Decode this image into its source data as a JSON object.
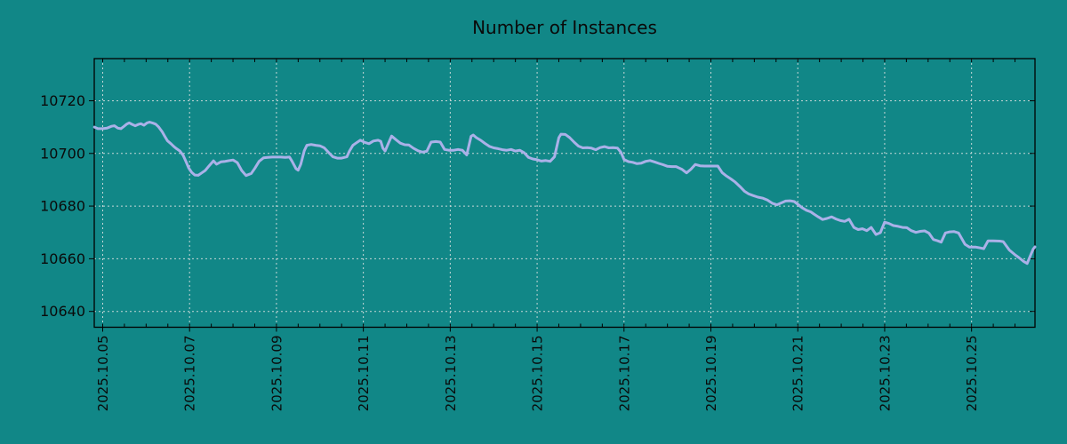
{
  "chart_data": {
    "type": "line",
    "title": "Number of Instances",
    "xlabel": "",
    "ylabel": "",
    "grid": true,
    "legend_position": "none",
    "background_color": "#118787",
    "line_color": "#aab1e8",
    "grid_color": "#c6d7d7",
    "axis_color": "#000000",
    "text_color": "#0a0a0a",
    "x_tick_labels": [
      "2025.10.05",
      "2025.10.07",
      "2025.10.09",
      "2025.10.11",
      "2025.10.13",
      "2025.10.15",
      "2025.10.17",
      "2025.10.19",
      "2025.10.21",
      "2025.10.23",
      "2025.10.25"
    ],
    "x_tick_days": [
      0,
      2,
      4,
      6,
      8,
      10,
      12,
      14,
      16,
      18,
      20
    ],
    "x_minor_step_days": 0.5,
    "y_ticks": [
      10640,
      10660,
      10680,
      10700,
      10720
    ],
    "ylim": [
      10634,
      10736
    ],
    "xlim_days": [
      -0.194,
      21.46
    ],
    "series": [
      {
        "name": "instances",
        "points": [
          [
            -0.19,
            10710
          ],
          [
            -0.11,
            10709.4
          ],
          [
            0,
            10709.4
          ],
          [
            0.1,
            10709.6
          ],
          [
            0.2,
            10710.3
          ],
          [
            0.27,
            10710.5
          ],
          [
            0.35,
            10709.6
          ],
          [
            0.42,
            10709.4
          ],
          [
            0.47,
            10710
          ],
          [
            0.55,
            10711.1
          ],
          [
            0.61,
            10711.6
          ],
          [
            0.68,
            10711
          ],
          [
            0.75,
            10710.5
          ],
          [
            0.82,
            10711
          ],
          [
            0.88,
            10711.3
          ],
          [
            0.95,
            10710.7
          ],
          [
            1.02,
            10711.6
          ],
          [
            1.08,
            10711.9
          ],
          [
            1.16,
            10711.5
          ],
          [
            1.22,
            10711.1
          ],
          [
            1.29,
            10710
          ],
          [
            1.37,
            10708.2
          ],
          [
            1.43,
            10706.5
          ],
          [
            1.49,
            10704.8
          ],
          [
            1.57,
            10703.7
          ],
          [
            1.64,
            10702.6
          ],
          [
            1.7,
            10701.8
          ],
          [
            1.78,
            10700.9
          ],
          [
            1.85,
            10699.3
          ],
          [
            1.92,
            10696.8
          ],
          [
            1.98,
            10694.5
          ],
          [
            2.05,
            10692.8
          ],
          [
            2.12,
            10691.8
          ],
          [
            2.2,
            10691.7
          ],
          [
            2.28,
            10692.6
          ],
          [
            2.36,
            10693.5
          ],
          [
            2.45,
            10695.3
          ],
          [
            2.55,
            10697.2
          ],
          [
            2.62,
            10695.9
          ],
          [
            2.72,
            10696.8
          ],
          [
            2.82,
            10697
          ],
          [
            2.92,
            10697.3
          ],
          [
            3,
            10697.5
          ],
          [
            3.1,
            10696.5
          ],
          [
            3.2,
            10693.5
          ],
          [
            3.3,
            10691.6
          ],
          [
            3.42,
            10692.4
          ],
          [
            3.5,
            10694.3
          ],
          [
            3.6,
            10697
          ],
          [
            3.7,
            10698.3
          ],
          [
            3.8,
            10698.5
          ],
          [
            3.9,
            10698.6
          ],
          [
            4,
            10698.6
          ],
          [
            4.1,
            10698.6
          ],
          [
            4.2,
            10698.5
          ],
          [
            4.3,
            10698.6
          ],
          [
            4.36,
            10697
          ],
          [
            4.45,
            10694.2
          ],
          [
            4.5,
            10693.6
          ],
          [
            4.56,
            10695.9
          ],
          [
            4.64,
            10701
          ],
          [
            4.7,
            10703.1
          ],
          [
            4.8,
            10703.4
          ],
          [
            4.9,
            10703.1
          ],
          [
            5,
            10702.9
          ],
          [
            5.1,
            10702.1
          ],
          [
            5.2,
            10700.4
          ],
          [
            5.3,
            10698.7
          ],
          [
            5.4,
            10698.2
          ],
          [
            5.5,
            10698.2
          ],
          [
            5.62,
            10698.7
          ],
          [
            5.68,
            10700.9
          ],
          [
            5.76,
            10703.1
          ],
          [
            5.83,
            10703.9
          ],
          [
            5.93,
            10705
          ],
          [
            6.03,
            10704.2
          ],
          [
            6.13,
            10703.7
          ],
          [
            6.23,
            10704.7
          ],
          [
            6.34,
            10705
          ],
          [
            6.4,
            10704.6
          ],
          [
            6.45,
            10702
          ],
          [
            6.5,
            10700.9
          ],
          [
            6.58,
            10704
          ],
          [
            6.65,
            10706.6
          ],
          [
            6.75,
            10705.2
          ],
          [
            6.85,
            10703.9
          ],
          [
            6.95,
            10703.3
          ],
          [
            7.05,
            10703.2
          ],
          [
            7.15,
            10702
          ],
          [
            7.26,
            10701
          ],
          [
            7.36,
            10700.5
          ],
          [
            7.46,
            10700.8
          ],
          [
            7.56,
            10704.3
          ],
          [
            7.67,
            10704.5
          ],
          [
            7.77,
            10704.3
          ],
          [
            7.87,
            10701.5
          ],
          [
            7.97,
            10701.2
          ],
          [
            8.08,
            10701.2
          ],
          [
            8.18,
            10701.5
          ],
          [
            8.28,
            10701.2
          ],
          [
            8.38,
            10699.4
          ],
          [
            8.48,
            10706.5
          ],
          [
            8.53,
            10707
          ],
          [
            8.6,
            10706
          ],
          [
            8.7,
            10705
          ],
          [
            8.8,
            10703.8
          ],
          [
            8.9,
            10702.7
          ],
          [
            9,
            10702.1
          ],
          [
            9.1,
            10701.8
          ],
          [
            9.2,
            10701.4
          ],
          [
            9.3,
            10701.2
          ],
          [
            9.4,
            10701.5
          ],
          [
            9.5,
            10700.9
          ],
          [
            9.6,
            10701.2
          ],
          [
            9.7,
            10700.3
          ],
          [
            9.8,
            10698.5
          ],
          [
            9.9,
            10697.9
          ],
          [
            10,
            10697.6
          ],
          [
            10.1,
            10697.1
          ],
          [
            10.2,
            10697.3
          ],
          [
            10.3,
            10697
          ],
          [
            10.4,
            10698.7
          ],
          [
            10.5,
            10706
          ],
          [
            10.55,
            10707.3
          ],
          [
            10.65,
            10707.2
          ],
          [
            10.75,
            10706
          ],
          [
            10.85,
            10704.3
          ],
          [
            10.95,
            10702.8
          ],
          [
            11.05,
            10702.1
          ],
          [
            11.15,
            10702.2
          ],
          [
            11.25,
            10702
          ],
          [
            11.35,
            10701.4
          ],
          [
            11.45,
            10702.2
          ],
          [
            11.55,
            10702.6
          ],
          [
            11.65,
            10702.1
          ],
          [
            11.75,
            10702.2
          ],
          [
            11.85,
            10702
          ],
          [
            11.93,
            10700.4
          ],
          [
            12,
            10697.7
          ],
          [
            12.1,
            10696.9
          ],
          [
            12.2,
            10696.6
          ],
          [
            12.3,
            10696.1
          ],
          [
            12.4,
            10696.3
          ],
          [
            12.5,
            10697
          ],
          [
            12.6,
            10697.3
          ],
          [
            12.7,
            10696.8
          ],
          [
            12.8,
            10696.2
          ],
          [
            12.9,
            10695.7
          ],
          [
            13,
            10695.1
          ],
          [
            13.1,
            10695
          ],
          [
            13.2,
            10695
          ],
          [
            13.33,
            10694
          ],
          [
            13.44,
            10692.6
          ],
          [
            13.54,
            10694
          ],
          [
            13.64,
            10695.8
          ],
          [
            13.75,
            10695.3
          ],
          [
            13.85,
            10695.2
          ],
          [
            14,
            10695.2
          ],
          [
            14.16,
            10695.2
          ],
          [
            14.26,
            10692.7
          ],
          [
            14.36,
            10691.4
          ],
          [
            14.46,
            10690.3
          ],
          [
            14.56,
            10689.1
          ],
          [
            14.67,
            10687.4
          ],
          [
            14.77,
            10685.7
          ],
          [
            14.87,
            10684.6
          ],
          [
            14.97,
            10684
          ],
          [
            15.08,
            10683.4
          ],
          [
            15.2,
            10683
          ],
          [
            15.3,
            10682.3
          ],
          [
            15.42,
            10681
          ],
          [
            15.52,
            10680.5
          ],
          [
            15.62,
            10681.2
          ],
          [
            15.72,
            10681.9
          ],
          [
            15.82,
            10682
          ],
          [
            15.92,
            10681.7
          ],
          [
            16,
            10680.7
          ],
          [
            16.1,
            10679.4
          ],
          [
            16.2,
            10678.4
          ],
          [
            16.3,
            10677.8
          ],
          [
            16.37,
            10677
          ],
          [
            16.47,
            10675.9
          ],
          [
            16.57,
            10674.9
          ],
          [
            16.67,
            10675.3
          ],
          [
            16.78,
            10675.9
          ],
          [
            16.88,
            10675.1
          ],
          [
            16.98,
            10674.5
          ],
          [
            17.08,
            10674.2
          ],
          [
            17.18,
            10675
          ],
          [
            17.29,
            10671.9
          ],
          [
            17.39,
            10671.1
          ],
          [
            17.49,
            10671.4
          ],
          [
            17.59,
            10670.7
          ],
          [
            17.69,
            10671.9
          ],
          [
            17.8,
            10669.2
          ],
          [
            17.9,
            10669.9
          ],
          [
            18,
            10673.9
          ],
          [
            18.1,
            10673.4
          ],
          [
            18.2,
            10672.6
          ],
          [
            18.31,
            10672.3
          ],
          [
            18.41,
            10671.9
          ],
          [
            18.51,
            10671.8
          ],
          [
            18.61,
            10670.7
          ],
          [
            18.72,
            10670
          ],
          [
            18.82,
            10670.4
          ],
          [
            18.92,
            10670.6
          ],
          [
            19.02,
            10669.7
          ],
          [
            19.12,
            10667.3
          ],
          [
            19.22,
            10666.8
          ],
          [
            19.3,
            10666.3
          ],
          [
            19.4,
            10669.8
          ],
          [
            19.5,
            10670.2
          ],
          [
            19.6,
            10670.3
          ],
          [
            19.7,
            10669.8
          ],
          [
            19.85,
            10665.5
          ],
          [
            19.95,
            10664.4
          ],
          [
            20.1,
            10664.4
          ],
          [
            20.2,
            10664.1
          ],
          [
            20.28,
            10663.8
          ],
          [
            20.38,
            10666.8
          ],
          [
            20.5,
            10666.8
          ],
          [
            20.65,
            10666.7
          ],
          [
            20.73,
            10666.5
          ],
          [
            20.87,
            10663.3
          ],
          [
            21,
            10661.5
          ],
          [
            21.1,
            10660.3
          ],
          [
            21.2,
            10659
          ],
          [
            21.28,
            10658.2
          ],
          [
            21.35,
            10661
          ],
          [
            21.42,
            10663.7
          ],
          [
            21.46,
            10664.5
          ]
        ]
      }
    ]
  }
}
